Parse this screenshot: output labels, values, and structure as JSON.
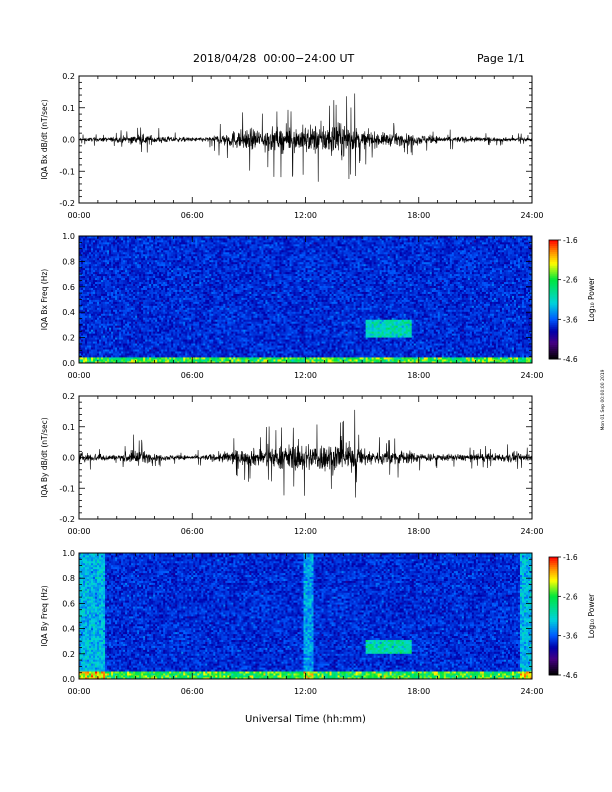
{
  "header": {
    "title": "2018/04/28  00:00−24:00 UT",
    "page": "Page 1/1"
  },
  "footer": {
    "xlabel": "Universal Time (hh:mm)",
    "side_stamp": "Mon 01 Sep 00:00:00 2019"
  },
  "colors": {
    "trace": "#000000",
    "colorbar": [
      "#ff0000",
      "#ff8800",
      "#ffff00",
      "#00ff00",
      "#00dddd",
      "#0066ff",
      "#0000aa",
      "#440088",
      "#000000"
    ],
    "spectrogram_background": "#1a4fcf"
  },
  "chart_data": [
    {
      "type": "line",
      "id": "bx-waveform",
      "title": "",
      "ylabel": "IQA Bx dB/dt (nT/sec)",
      "xlabel": "",
      "xlim": [
        0,
        24
      ],
      "ylim": [
        -0.2,
        0.2
      ],
      "x_ticks": [
        "00:00",
        "06:00",
        "12:00",
        "18:00",
        "24:00"
      ],
      "y_ticks": [
        "0.2",
        "0.1",
        "0.0",
        "-0.1",
        "-0.2"
      ],
      "series": [
        {
          "x": [
            0,
            1,
            2,
            3,
            4,
            5,
            6,
            7,
            8,
            9,
            10,
            11,
            12,
            13,
            14,
            15,
            16,
            17,
            18,
            19,
            20,
            21,
            22,
            23,
            24
          ],
          "amplitude": [
            0.01,
            0.012,
            0.015,
            0.03,
            0.025,
            0.015,
            0.012,
            0.015,
            0.05,
            0.06,
            0.07,
            0.07,
            0.08,
            0.09,
            0.1,
            0.05,
            0.04,
            0.035,
            0.03,
            0.02,
            0.018,
            0.015,
            0.012,
            0.012,
            0.01
          ],
          "peak_max": 0.145,
          "peak_min": -0.115
        }
      ]
    },
    {
      "type": "heatmap",
      "id": "bx-spectrogram",
      "title": "",
      "ylabel": "IQA Bx Freq (Hz)",
      "xlim": [
        0,
        24
      ],
      "ylim": [
        0,
        1.0
      ],
      "x_ticks": [
        "00:00",
        "06:00",
        "12:00",
        "18:00",
        "24:00"
      ],
      "y_ticks": [
        "1.0",
        "0.8",
        "0.6",
        "0.4",
        "0.2",
        "0.0"
      ],
      "colorbar": {
        "label": "Log₁₀ Power",
        "ticks": [
          "-1.6",
          "-2.6",
          "-3.6",
          "-4.6"
        ],
        "range": [
          -4.6,
          -1.6
        ]
      },
      "features": [
        {
          "kind": "low-frequency band",
          "x_range": [
            0,
            24
          ],
          "freq_range": [
            0,
            0.05
          ],
          "log_power": -2.4
        },
        {
          "kind": "emission",
          "x_range": [
            15.2,
            17.6
          ],
          "freq_range": [
            0.2,
            0.35
          ],
          "log_power": -2.9
        }
      ]
    },
    {
      "type": "line",
      "id": "by-waveform",
      "title": "",
      "ylabel": "IQA By dB/dt (nT/sec)",
      "xlim": [
        0,
        24
      ],
      "ylim": [
        -0.2,
        0.2
      ],
      "x_ticks": [
        "00:00",
        "06:00",
        "12:00",
        "18:00",
        "24:00"
      ],
      "y_ticks": [
        "0.2",
        "0.1",
        "0.0",
        "-0.1",
        "-0.2"
      ],
      "series": [
        {
          "x": [
            0,
            1,
            2,
            3,
            4,
            5,
            6,
            7,
            8,
            9,
            10,
            11,
            12,
            13,
            14,
            15,
            16,
            17,
            18,
            19,
            20,
            21,
            22,
            23,
            24
          ],
          "amplitude": [
            0.03,
            0.025,
            0.015,
            0.05,
            0.02,
            0.015,
            0.012,
            0.02,
            0.04,
            0.05,
            0.06,
            0.075,
            0.09,
            0.085,
            0.1,
            0.05,
            0.04,
            0.045,
            0.03,
            0.02,
            0.02,
            0.022,
            0.025,
            0.03,
            0.025
          ],
          "peak_max": 0.155,
          "peak_min": -0.13
        }
      ]
    },
    {
      "type": "heatmap",
      "id": "by-spectrogram",
      "title": "",
      "ylabel": "IQA By Freq (Hz)",
      "xlim": [
        0,
        24
      ],
      "ylim": [
        0,
        1.0
      ],
      "x_ticks": [
        "00:00",
        "06:00",
        "12:00",
        "18:00",
        "24:00"
      ],
      "y_ticks": [
        "1.0",
        "0.8",
        "0.6",
        "0.4",
        "0.2",
        "0.0"
      ],
      "colorbar": {
        "label": "Log₁₀ Power",
        "ticks": [
          "-1.6",
          "-2.6",
          "-3.6",
          "-4.6"
        ],
        "range": [
          -4.6,
          -1.6
        ]
      },
      "features": [
        {
          "kind": "low-frequency band",
          "x_range": [
            0,
            24
          ],
          "freq_range": [
            0,
            0.06
          ],
          "log_power": -2.4
        },
        {
          "kind": "broadband",
          "x_range": [
            0.0,
            1.4
          ],
          "freq_range": [
            0,
            1.0
          ],
          "log_power": -3.2
        },
        {
          "kind": "broadband",
          "x_range": [
            23.4,
            24
          ],
          "freq_range": [
            0,
            1.0
          ],
          "log_power": -3.2
        },
        {
          "kind": "broadband",
          "x_range": [
            11.9,
            12.4
          ],
          "freq_range": [
            0,
            1.0
          ],
          "log_power": -3.3
        },
        {
          "kind": "emission",
          "x_range": [
            15.2,
            17.6
          ],
          "freq_range": [
            0.2,
            0.32
          ],
          "log_power": -2.9
        }
      ]
    }
  ]
}
